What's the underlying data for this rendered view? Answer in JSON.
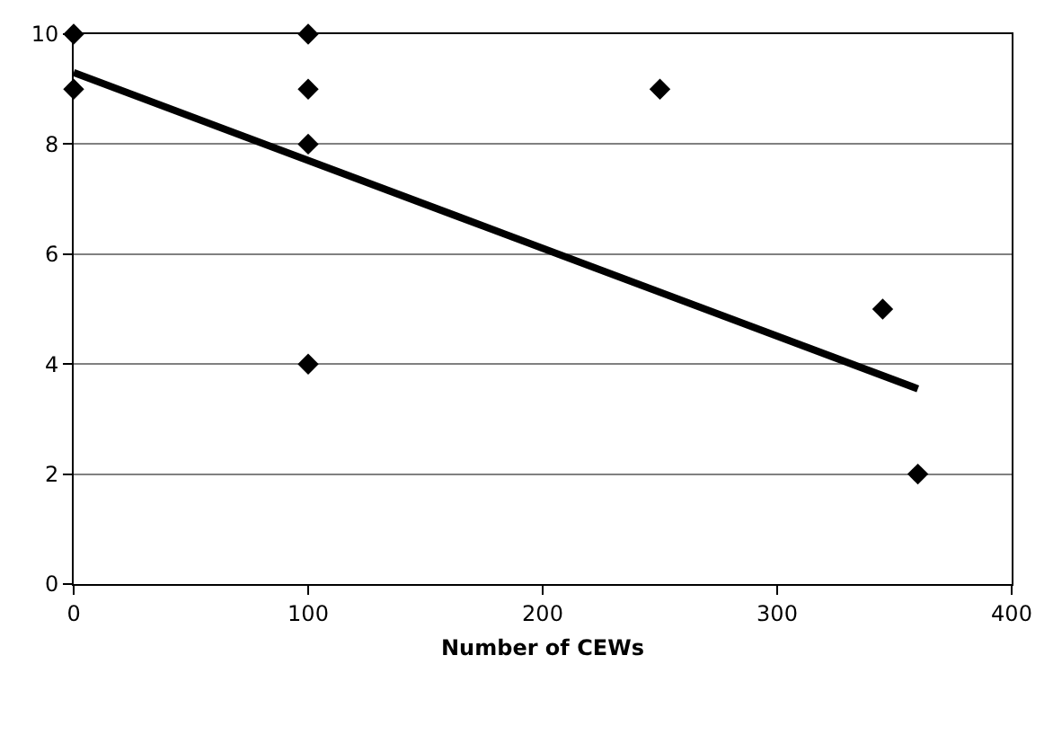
{
  "chart_data": {
    "type": "scatter",
    "xlabel": "Number of CEWs",
    "xlim": [
      0,
      400
    ],
    "xticks": [
      0,
      100,
      200,
      300,
      400
    ],
    "ylim": [
      0,
      10
    ],
    "yticks": [
      0,
      2,
      4,
      6,
      8,
      10
    ],
    "grid": "y",
    "marker": "diamond",
    "series": [
      {
        "type": "scatter",
        "color": "#000000",
        "x": [
          0,
          0,
          100,
          100,
          100,
          100,
          250,
          345,
          360
        ],
        "values": [
          10,
          9,
          10,
          9,
          8,
          4,
          9,
          5,
          2
        ]
      },
      {
        "type": "line",
        "color": "#000000",
        "line_style": "solid",
        "marker": "none",
        "x": [
          0,
          360
        ],
        "values": [
          9.3,
          3.55
        ]
      }
    ]
  }
}
